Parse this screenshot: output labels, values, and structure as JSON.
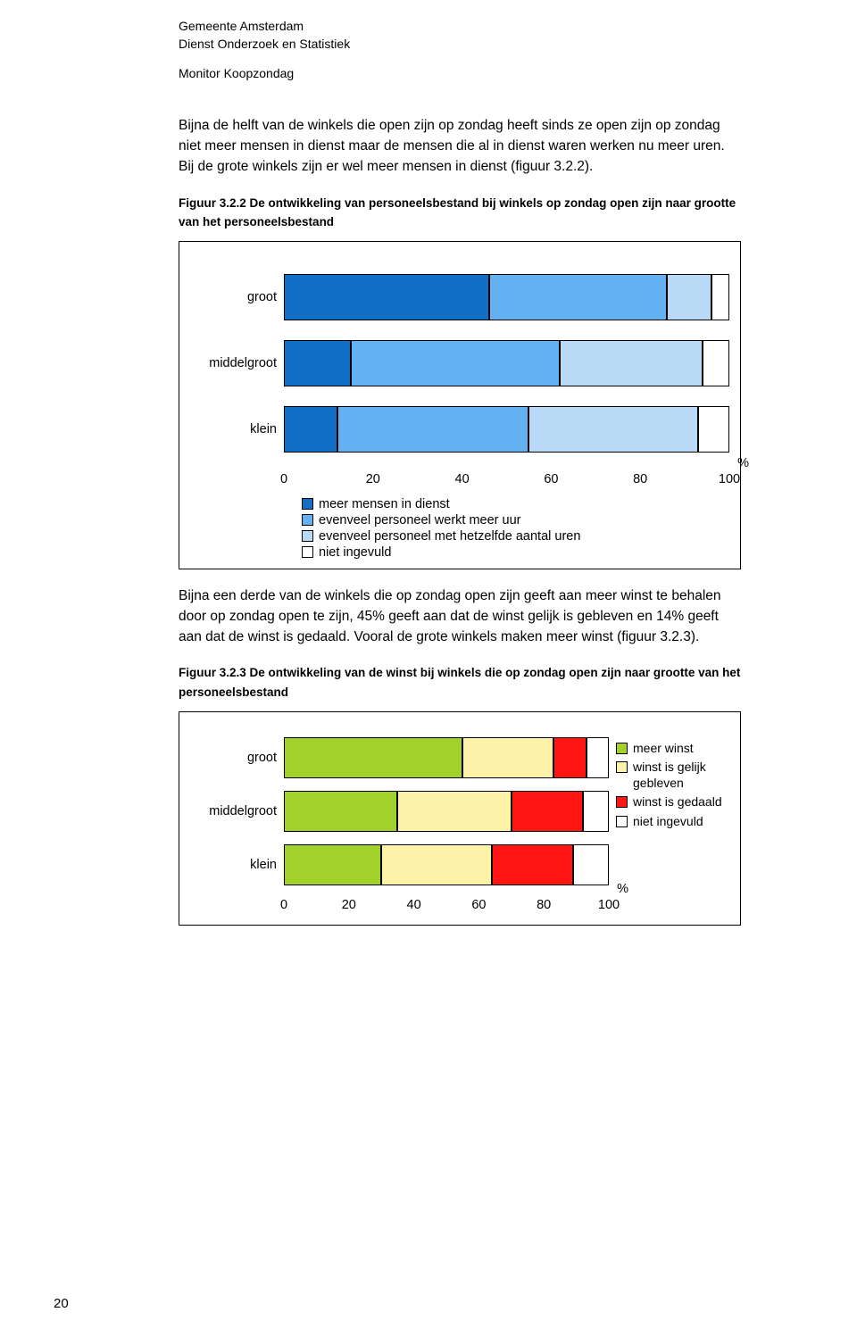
{
  "header": {
    "org": "Gemeente Amsterdam",
    "dept": "Dienst Onderzoek en Statistiek",
    "monitor": "Monitor Koopzondag"
  },
  "para1": "Bijna de helft van de winkels die open zijn op zondag heeft sinds ze open zijn op zondag niet meer mensen in dienst maar de mensen die al in dienst waren werken nu meer uren. Bij de grote winkels zijn er wel meer mensen in dienst (figuur 3.2.2).",
  "fig1_caption": "Figuur 3.2.2 De ontwikkeling van personeelsbestand bij winkels op zondag open zijn naar grootte van het personeelsbestand",
  "chart1": {
    "type": "stacked-hbar",
    "categories": [
      "groot",
      "middelgroot",
      "klein"
    ],
    "series": [
      {
        "label": "meer mensen in dienst",
        "color": "#126fc6"
      },
      {
        "label": "evenveel personeel werkt meer uur",
        "color": "#64b1f2"
      },
      {
        "label": "evenveel personeel met hetzelfde aantal uren",
        "color": "#b8daf7"
      },
      {
        "label": "niet ingevuld",
        "color": "#ffffff"
      }
    ],
    "data": [
      [
        46,
        40,
        10,
        4
      ],
      [
        15,
        47,
        32,
        6
      ],
      [
        12,
        43,
        38,
        7
      ]
    ],
    "xlim": [
      0,
      100
    ],
    "xtick_step": 20,
    "pct_symbol": "%",
    "grid_color": "#888888",
    "border_color": "#000000"
  },
  "para2": "Bijna een derde van de winkels die op zondag open zijn geeft aan meer winst te behalen door op zondag open te zijn, 45% geeft aan dat de winst gelijk is gebleven en 14% geeft aan dat de winst is gedaald. Vooral de grote winkels maken meer winst (figuur 3.2.3).",
  "fig2_caption": "Figuur 3.2.3 De ontwikkeling van de winst bij winkels die op zondag open zijn naar grootte van het personeelsbestand",
  "chart2": {
    "type": "stacked-hbar",
    "categories": [
      "groot",
      "middelgroot",
      "klein"
    ],
    "series": [
      {
        "label": "meer winst",
        "color": "#a2d22a"
      },
      {
        "label": "winst is gelijk gebleven",
        "color": "#fdf3a8"
      },
      {
        "label": "winst is gedaald",
        "color": "#ff1612"
      },
      {
        "label": "niet ingevuld",
        "color": "#ffffff"
      }
    ],
    "data": [
      [
        55,
        28,
        10,
        7
      ],
      [
        35,
        35,
        22,
        8
      ],
      [
        30,
        34,
        25,
        11
      ]
    ],
    "xlim": [
      0,
      100
    ],
    "xtick_step": 20,
    "pct_symbol": "%",
    "grid_color": "#888888",
    "border_color": "#000000"
  },
  "page_number": "20"
}
